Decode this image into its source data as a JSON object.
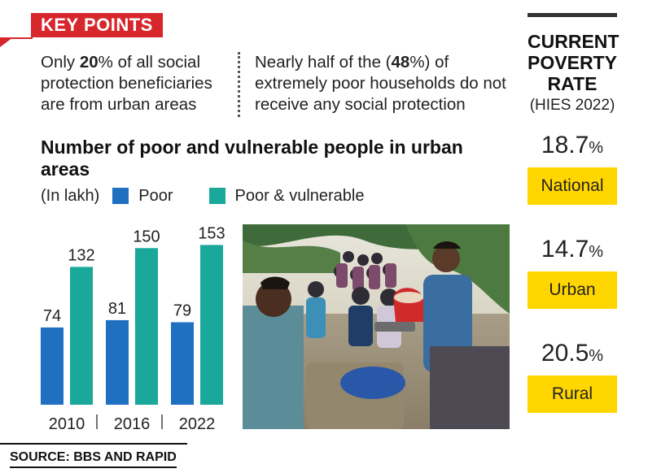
{
  "key_points": {
    "label": "KEY POINTS",
    "point1": {
      "pre": "Only ",
      "bold": "20",
      "post": "% of all social protection beneficiaries are from urban areas"
    },
    "point2": {
      "pre": "Nearly half of the (",
      "bold": "48",
      "post": "%) of extremely poor households do not receive any social protection"
    }
  },
  "chart_data": {
    "type": "bar",
    "title": "Number of poor and vulnerable people in urban areas",
    "unit_label": "(In lakh)",
    "categories": [
      "2010",
      "2016",
      "2022"
    ],
    "series": [
      {
        "name": "Poor",
        "values": [
          74,
          81,
          79
        ],
        "color": "#1f70c1"
      },
      {
        "name": "Poor & vulnerable",
        "values": [
          132,
          150,
          153
        ],
        "color": "#1aa89a"
      }
    ],
    "ylim": [
      0,
      165
    ]
  },
  "poverty": {
    "title_line1": "CURRENT",
    "title_line2": "POVERTY",
    "title_line3": "RATE",
    "subtitle": "(HIES 2022)",
    "items": [
      {
        "value": "18.7",
        "unit": "%",
        "label": "National"
      },
      {
        "value": "14.7",
        "unit": "%",
        "label": "Urban"
      },
      {
        "value": "20.5",
        "unit": "%",
        "label": "Rural"
      }
    ],
    "badge_color": "#ffd600"
  },
  "source": "SOURCE: BBS AND RAPID",
  "colors": {
    "accent_red": "#d7262c"
  }
}
